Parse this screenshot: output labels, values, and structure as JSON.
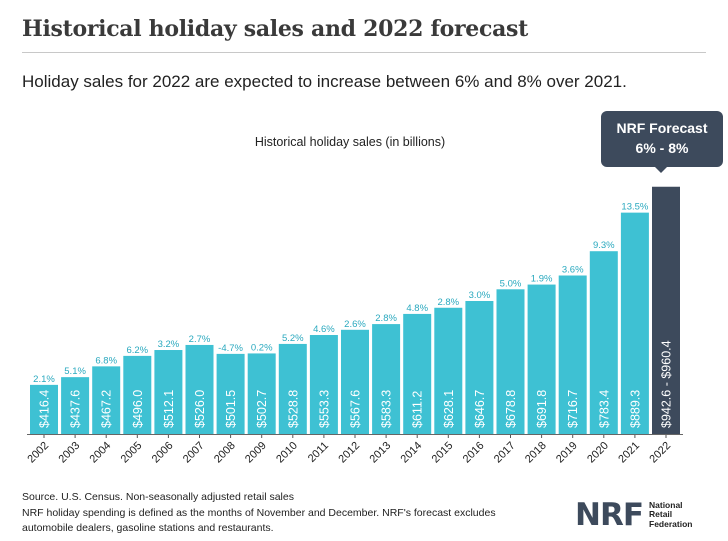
{
  "header": {
    "title": "Historical holiday sales and 2022 forecast",
    "subtitle": "Holiday sales for 2022 are expected to increase between 6% and 8% over 2021."
  },
  "callout": {
    "line1": "NRF Forecast",
    "line2": "6% - 8%",
    "color": "#3d4a5c"
  },
  "footer": {
    "line1": "Source. U.S. Census. Non-seasonally adjusted retail sales",
    "line2": "NRF holiday spending is defined as the months of November and December. NRF's forecast excludes automobile dealers, gasoline stations and restaurants."
  },
  "logo": {
    "mark": "NRF",
    "line1": "National",
    "line2": "Retail",
    "line3": "Federation"
  },
  "colors": {
    "bar": "#3ec1d3",
    "forecast": "#3d4a5c",
    "growth_label": "#2aa9bf"
  },
  "chart_data": {
    "type": "bar",
    "title": "Historical holiday sales (in billions)",
    "categories": [
      "2002",
      "2003",
      "2004",
      "2005",
      "2006",
      "2007",
      "2008",
      "2009",
      "2010",
      "2011",
      "2012",
      "2013",
      "2014",
      "2015",
      "2016",
      "2017",
      "2018",
      "2019",
      "2020",
      "2021",
      "2022"
    ],
    "values": [
      416.4,
      437.6,
      467.2,
      496.0,
      512.1,
      526.0,
      501.5,
      502.7,
      528.8,
      553.3,
      567.6,
      583.3,
      611.2,
      628.1,
      646.7,
      678.8,
      691.8,
      716.7,
      783.4,
      889.3,
      960.4
    ],
    "value_labels": [
      "$416.4",
      "$437.6",
      "$467.2",
      "$496.0",
      "$512.1",
      "$526.0",
      "$501.5",
      "$502.7",
      "$528.8",
      "$553.3",
      "$567.6",
      "$583.3",
      "$611.2",
      "$628.1",
      "$646.7",
      "$678.8",
      "$691.8",
      "$716.7",
      "$783.4",
      "$889.3",
      "$942.6 - $960.4"
    ],
    "growth_labels": [
      "2.1%",
      "5.1%",
      "6.8%",
      "6.2%",
      "3.2%",
      "2.7%",
      "-4.7%",
      "0.2%",
      "5.2%",
      "4.6%",
      "2.6%",
      "2.8%",
      "4.8%",
      "2.8%",
      "3.0%",
      "5.0%",
      "1.9%",
      "3.6%",
      "9.3%",
      "13.5%",
      ""
    ],
    "forecast_index": 20
  }
}
